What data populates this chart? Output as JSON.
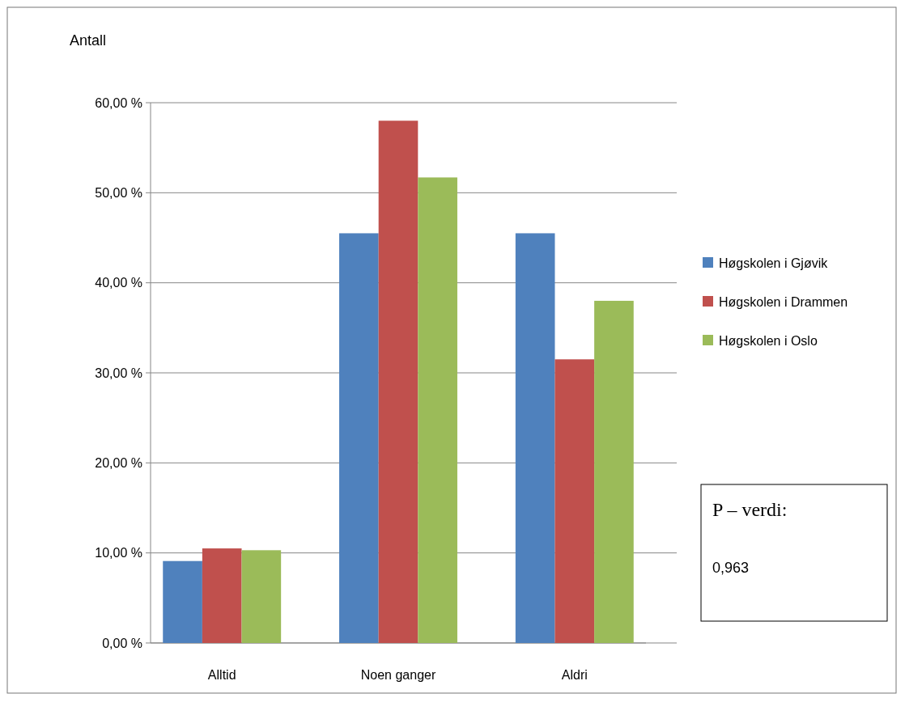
{
  "chart_data": {
    "type": "bar",
    "ylabel": "Antall",
    "categories": [
      "Alltid",
      "Noen ganger",
      "Aldri"
    ],
    "series": [
      {
        "name": "Høgskolen i Gjøvik",
        "color": "#4f81bd",
        "values": [
          9.1,
          45.5,
          45.5
        ]
      },
      {
        "name": "Høgskolen i Drammen",
        "color": "#c0504d",
        "values": [
          10.5,
          58,
          31.5
        ]
      },
      {
        "name": "Høgskolen i Oslo",
        "color": "#9bbb59",
        "values": [
          10.3,
          51.7,
          38
        ]
      }
    ],
    "ylim": [
      0,
      60
    ],
    "yticks": [
      {
        "value": 0,
        "label": "0,00 %"
      },
      {
        "value": 10,
        "label": "10,00 %"
      },
      {
        "value": 20,
        "label": "20,00 %"
      },
      {
        "value": 30,
        "label": "30,00 %"
      },
      {
        "value": 40,
        "label": "40,00 %"
      },
      {
        "value": 50,
        "label": "50,00 %"
      },
      {
        "value": 60,
        "label": "60,00 %"
      }
    ],
    "grid": "y",
    "legend": "right",
    "annotations": [
      "P – verdi:",
      "0,963"
    ]
  }
}
